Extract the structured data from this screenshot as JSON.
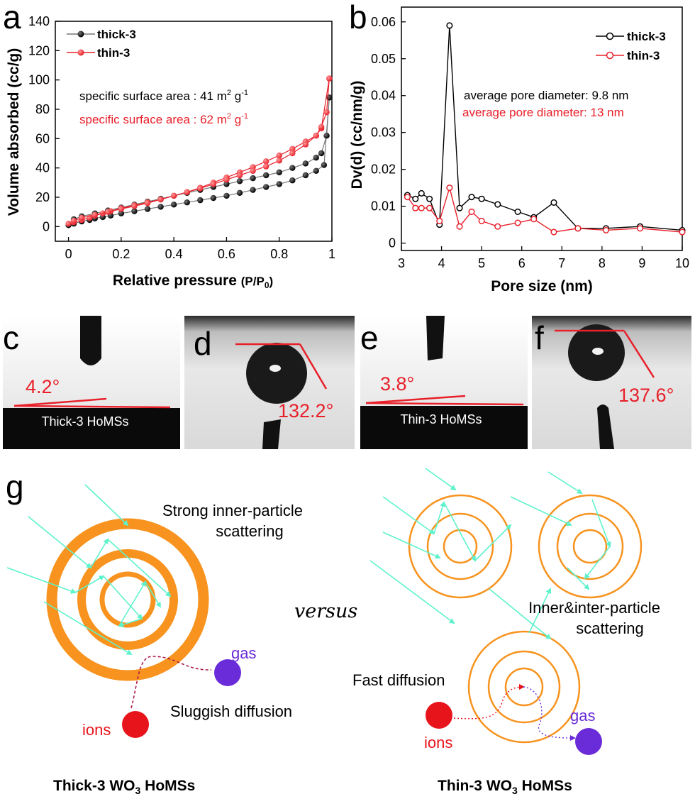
{
  "panel_labels": {
    "a": "a",
    "b": "b",
    "c": "c",
    "d": "d",
    "e": "e",
    "f": "f",
    "g": "g"
  },
  "colors": {
    "thick": "#000000",
    "thin": "#e8202a",
    "arrow": "#5ef2cc",
    "ring": "#f7931e",
    "ion": "#e8141c",
    "gas": "#6a2bd8",
    "angle_line": "#e8202a"
  },
  "chart_data": [
    {
      "type": "line",
      "panel": "a",
      "title": "",
      "xlabel": "Relative pressure",
      "xlabel_unit": "(P/P",
      "xlabel_unit_sub": "0",
      "xlabel_unit_end": ")",
      "ylabel": "Volume absorbed (cc/g)",
      "xlim": [
        -0.05,
        1.0
      ],
      "ylim": [
        -10,
        140
      ],
      "xticks": [
        "0",
        "0.2",
        "0.4",
        "0.6",
        "0.8",
        "1"
      ],
      "xtick_values": [
        0,
        0.2,
        0.4,
        0.6,
        0.8,
        1.0
      ],
      "yticks": [
        "0",
        "20",
        "40",
        "60",
        "80",
        "100",
        "120",
        "140"
      ],
      "ytick_values": [
        0,
        20,
        40,
        60,
        80,
        100,
        120,
        140
      ],
      "legend": {
        "position": "top-left"
      },
      "annotations": [
        {
          "text": "specific surface area : 41 m",
          "sup": "2",
          "tail": " g",
          "sup2": "-1",
          "series": "thick-3"
        },
        {
          "text": "specific surface area : 62 m",
          "sup": "2",
          "tail": " g",
          "sup2": "-1",
          "series": "thin-3"
        }
      ],
      "series": [
        {
          "name": "thick-3",
          "color": "#000000",
          "adsorption": {
            "x": [
              0.0,
              0.02,
              0.05,
              0.08,
              0.1,
              0.13,
              0.16,
              0.2,
              0.25,
              0.3,
              0.35,
              0.4,
              0.45,
              0.5,
              0.55,
              0.6,
              0.65,
              0.7,
              0.75,
              0.8,
              0.85,
              0.9,
              0.94,
              0.97,
              0.99
            ],
            "y": [
              1,
              2,
              3.5,
              4.5,
              5.5,
              6.5,
              7.5,
              9,
              10.5,
              12,
              13.5,
              15,
              16.5,
              18,
              19.5,
              21,
              23,
              25,
              27,
              29,
              31.5,
              35,
              38,
              42,
              88
            ]
          },
          "desorption": {
            "x": [
              0.99,
              0.98,
              0.96,
              0.94,
              0.9,
              0.85,
              0.8,
              0.75,
              0.7,
              0.65,
              0.6,
              0.55,
              0.5,
              0.45,
              0.4,
              0.35,
              0.3,
              0.25,
              0.2,
              0.15,
              0.1,
              0.05,
              0.02
            ],
            "y": [
              88,
              62,
              50,
              47,
              43,
              40,
              37,
              35,
              33,
              31,
              29,
              27,
              25,
              23,
              21,
              19,
              17,
              15,
              13,
              11,
              9,
              7,
              5
            ]
          }
        },
        {
          "name": "thin-3",
          "color": "#e8202a",
          "adsorption": {
            "x": [
              0.0,
              0.02,
              0.05,
              0.08,
              0.1,
              0.13,
              0.16,
              0.2,
              0.25,
              0.3,
              0.35,
              0.4,
              0.45,
              0.5,
              0.55,
              0.6,
              0.65,
              0.7,
              0.75,
              0.8,
              0.85,
              0.9,
              0.94,
              0.96,
              0.99
            ],
            "y": [
              2,
              3,
              4.5,
              6,
              7.5,
              9,
              10.5,
              12.5,
              14.5,
              16.5,
              18.5,
              21,
              23.5,
              26.5,
              30,
              33.5,
              37,
              40.5,
              44.5,
              48.5,
              53,
              58,
              62,
              67,
              101
            ]
          },
          "desorption": {
            "x": [
              0.99,
              0.98,
              0.96,
              0.94,
              0.9,
              0.85,
              0.8,
              0.75,
              0.7,
              0.65,
              0.6,
              0.55,
              0.5,
              0.45,
              0.4,
              0.35,
              0.3,
              0.25,
              0.2,
              0.15,
              0.1,
              0.05,
              0.02
            ],
            "y": [
              101,
              78,
              68,
              62,
              56,
              50,
              45,
              41,
              38,
              35,
              32,
              29,
              26,
              23.5,
              21,
              18.5,
              16,
              14,
              12,
              10,
              8,
              6,
              4
            ]
          }
        }
      ]
    },
    {
      "type": "line",
      "panel": "b",
      "title": "",
      "xlabel": "Pore size (nm)",
      "ylabel": "Dv(d) (cc/nm/g)",
      "xlim": [
        3,
        10
      ],
      "ylim": [
        -0.002,
        0.064
      ],
      "xticks": [
        "3",
        "4",
        "5",
        "6",
        "7",
        "8",
        "9",
        "10"
      ],
      "xtick_values": [
        3,
        4,
        5,
        6,
        7,
        8,
        9,
        10
      ],
      "yticks": [
        "0",
        "0.01",
        "0.02",
        "0.03",
        "0.04",
        "0.05",
        "0.06"
      ],
      "ytick_values": [
        0,
        0.01,
        0.02,
        0.03,
        0.04,
        0.05,
        0.06
      ],
      "legend": {
        "position": "top-right"
      },
      "annotations": [
        {
          "text": "average pore diameter: 9.8 nm",
          "series": "thick-3"
        },
        {
          "text": "average pore diameter: 13 nm",
          "series": "thin-3"
        }
      ],
      "series": [
        {
          "name": "thick-3",
          "color": "#000000",
          "x": [
            3.15,
            3.35,
            3.5,
            3.7,
            3.95,
            4.2,
            4.45,
            4.75,
            5.0,
            5.4,
            5.9,
            6.3,
            6.8,
            7.4,
            8.1,
            8.95,
            10.0
          ],
          "y": [
            0.013,
            0.012,
            0.0135,
            0.012,
            0.005,
            0.059,
            0.0095,
            0.0125,
            0.012,
            0.0105,
            0.0085,
            0.007,
            0.011,
            0.004,
            0.004,
            0.0045,
            0.0035
          ]
        },
        {
          "name": "thin-3",
          "color": "#e8202a",
          "x": [
            3.15,
            3.35,
            3.5,
            3.7,
            3.95,
            4.2,
            4.45,
            4.75,
            5.0,
            5.4,
            5.9,
            6.3,
            6.8,
            7.4,
            8.1,
            8.95,
            10.0
          ],
          "y": [
            0.0125,
            0.0095,
            0.0095,
            0.0095,
            0.006,
            0.015,
            0.0045,
            0.0085,
            0.006,
            0.0045,
            0.0055,
            0.0065,
            0.003,
            0.004,
            0.0035,
            0.004,
            0.003
          ]
        }
      ]
    }
  ],
  "photos": {
    "c": {
      "angle": "4.2°",
      "sample": "Thick-3 HoMSs"
    },
    "d": {
      "angle": "132.2°"
    },
    "e": {
      "angle": "3.8°",
      "sample": "Thin-3 HoMSs"
    },
    "f": {
      "angle": "137.6°"
    }
  },
  "schematic": {
    "left_scatter": [
      "Strong inner-particle",
      "scattering"
    ],
    "right_scatter": [
      "Inner&inter-particle",
      "scattering"
    ],
    "versus": "versus",
    "gas_left": "gas",
    "ions_left": "ions",
    "sluggish": "Sluggish diffusion",
    "fast": "Fast diffusion",
    "ions_right": "ions",
    "gas_right": "gas",
    "caption_left": {
      "pre": "Thick-3 WO",
      "sub": "3",
      "post": " HoMSs"
    },
    "caption_right": {
      "pre": "Thin-3 WO",
      "sub": "3",
      "post": " HoMSs"
    }
  }
}
